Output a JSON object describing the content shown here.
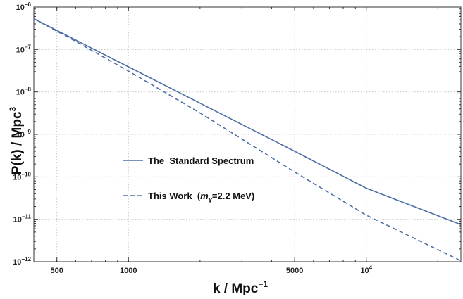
{
  "chart_data": {
    "type": "line",
    "title": "",
    "xlabel": "k / Mpc",
    "xlabel_exponent": "−1",
    "ylabel": "P(k) / Mpc",
    "ylabel_exponent": "3",
    "xscale": "log",
    "yscale": "log",
    "xlim": [
      400,
      25000
    ],
    "ylim": [
      1e-12,
      1e-06
    ],
    "grid": true,
    "legend_position": "center-left",
    "x_ticks": [
      {
        "value": 500,
        "label": "500"
      },
      {
        "value": 1000,
        "label": "1000"
      },
      {
        "value": 5000,
        "label": "5000"
      },
      {
        "value": 10000,
        "label": "10",
        "exponent": "4"
      }
    ],
    "y_ticks": [
      {
        "value": 1e-12,
        "label": "10",
        "exponent": "−12"
      },
      {
        "value": 1e-11,
        "label": "10",
        "exponent": "−11"
      },
      {
        "value": 1e-10,
        "label": "10",
        "exponent": "−10"
      },
      {
        "value": 1e-09,
        "label": "10",
        "exponent": "−9"
      },
      {
        "value": 1e-08,
        "label": "10",
        "exponent": "−8"
      },
      {
        "value": 1e-07,
        "label": "10",
        "exponent": "−7"
      },
      {
        "value": 1e-06,
        "label": "10",
        "exponent": "−6"
      }
    ],
    "series": [
      {
        "name": "The  Standard Spectrum",
        "style": "solid",
        "color": "#4a6fa5",
        "x": [
          400,
          1000,
          5000,
          10000,
          25000
        ],
        "y": [
          5.3e-07,
          3.9e-08,
          4e-10,
          5.4e-11,
          7.5e-12
        ]
      },
      {
        "name_prefix": "This Work  (",
        "name_symbol": "m",
        "name_subscript": "χ",
        "name_suffix": "=2.2 MeV)",
        "style": "dashed",
        "color": "#4a6fa5",
        "x": [
          400,
          600,
          1000,
          2000,
          5000,
          10000,
          25000
        ],
        "y": [
          5.3e-07,
          1.55e-07,
          3.1e-08,
          3.2e-09,
          1.3e-10,
          1.25e-11,
          1.05e-12
        ]
      }
    ]
  }
}
